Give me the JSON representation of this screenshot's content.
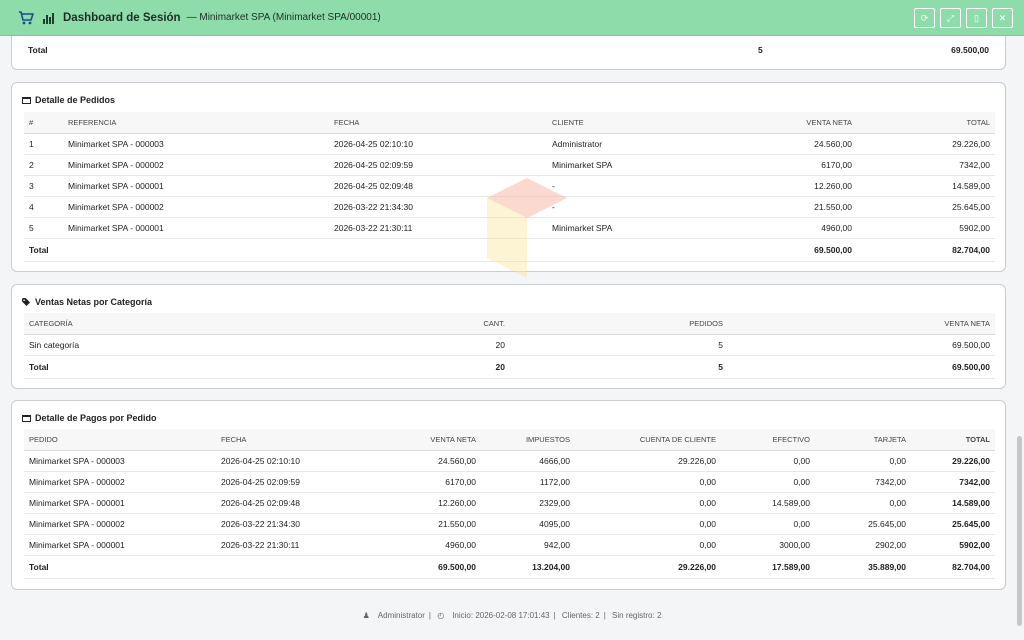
{
  "header": {
    "title": "Dashboard de Sesión",
    "subtitle": "— Minimarket SPA (Minimarket SPA/00001)",
    "buttons": [
      {
        "name": "refresh-button",
        "icon": "refresh-icon",
        "glyph": "⟳"
      },
      {
        "name": "expand-button",
        "icon": "expand-icon",
        "glyph": "⤢"
      },
      {
        "name": "pdf-button",
        "icon": "pdf-icon",
        "glyph": "▯"
      },
      {
        "name": "close-button",
        "icon": "close-icon",
        "glyph": "✕"
      }
    ]
  },
  "top_summary": {
    "label": "Total",
    "count": "5",
    "amount": "69.500,00"
  },
  "pedidos": {
    "title": "Detalle de Pedidos",
    "columns": [
      "#",
      "REFERENCIA",
      "FECHA",
      "CLIENTE",
      "VENTA NETA",
      "TOTAL"
    ],
    "rows": [
      [
        "1",
        "Minimarket SPA - 000003",
        "2026-04-25 02:10:10",
        "Administrator",
        "24.560,00",
        "29.226,00"
      ],
      [
        "2",
        "Minimarket SPA - 000002",
        "2026-04-25 02:09:59",
        "Minimarket SPA",
        "6170,00",
        "7342,00"
      ],
      [
        "3",
        "Minimarket SPA - 000001",
        "2026-04-25 02:09:48",
        "-",
        "12.260,00",
        "14.589,00"
      ],
      [
        "4",
        "Minimarket SPA - 000002",
        "2026-03-22 21:34:30",
        "-",
        "21.550,00",
        "25.645,00"
      ],
      [
        "5",
        "Minimarket SPA - 000001",
        "2026-03-22 21:30:11",
        "Minimarket SPA",
        "4960,00",
        "5902,00"
      ]
    ],
    "total": {
      "label": "Total",
      "venta_neta": "69.500,00",
      "total": "82.704,00"
    }
  },
  "categorias": {
    "title": "Ventas Netas por Categoría",
    "columns": [
      "CATEGORÍA",
      "CANT.",
      "PEDIDOS",
      "VENTA NETA"
    ],
    "rows": [
      [
        "Sin categoría",
        "20",
        "5",
        "69.500,00"
      ]
    ],
    "total": {
      "label": "Total",
      "cant": "20",
      "pedidos": "5",
      "venta_neta": "69.500,00"
    }
  },
  "pagos": {
    "title": "Detalle de Pagos por Pedido",
    "columns": [
      "PEDIDO",
      "FECHA",
      "VENTA NETA",
      "IMPUESTOS",
      "CUENTA DE CLIENTE",
      "EFECTIVO",
      "TARJETA",
      "TOTAL"
    ],
    "rows": [
      [
        "Minimarket SPA - 000003",
        "2026-04-25 02:10:10",
        "24.560,00",
        "4666,00",
        "29.226,00",
        "0,00",
        "0,00",
        "29.226,00"
      ],
      [
        "Minimarket SPA - 000002",
        "2026-04-25 02:09:59",
        "6170,00",
        "1172,00",
        "0,00",
        "0,00",
        "7342,00",
        "7342,00"
      ],
      [
        "Minimarket SPA - 000001",
        "2026-04-25 02:09:48",
        "12.260,00",
        "2329,00",
        "0,00",
        "14.589,00",
        "0,00",
        "14.589,00"
      ],
      [
        "Minimarket SPA - 000002",
        "2026-03-22 21:34:30",
        "21.550,00",
        "4095,00",
        "0,00",
        "0,00",
        "25.645,00",
        "25.645,00"
      ],
      [
        "Minimarket SPA - 000001",
        "2026-03-22 21:30:11",
        "4960,00",
        "942,00",
        "0,00",
        "3000,00",
        "2902,00",
        "5902,00"
      ]
    ],
    "total": {
      "label": "Total",
      "venta_neta": "69.500,00",
      "impuestos": "13.204,00",
      "cuenta": "29.226,00",
      "efectivo": "17.589,00",
      "tarjeta": "35.889,00",
      "total": "82.704,00"
    }
  },
  "footer": {
    "user": "Administrator",
    "inicio": "Inicio: 2026-02-08 17:01:43",
    "clientes": "Clientes: 2",
    "sin_registro": "Sin registro: 2"
  },
  "colors": {
    "header_bg": "#8fdcab",
    "accent": "#1c2e24"
  }
}
